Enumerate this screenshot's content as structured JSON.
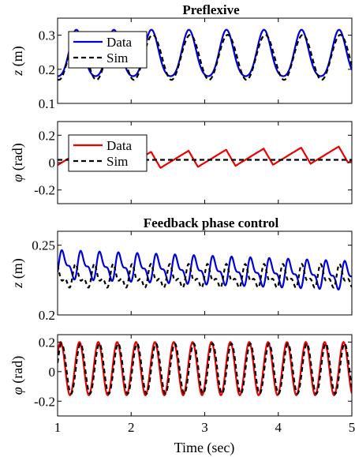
{
  "xlabel": "Time (sec)",
  "chart_data": [
    {
      "type": "line",
      "title": "Preflexive",
      "ylabel_var": "z",
      "ylabel_unit": " (m)",
      "xlim": [
        1,
        5
      ],
      "ylim": [
        0.1,
        0.35
      ],
      "yticks": [
        0.1,
        0.2,
        0.3
      ],
      "ytick_labels": [
        "0.1",
        "0.2",
        "0.3"
      ],
      "xticks": [
        1,
        2,
        3,
        4,
        5
      ],
      "show_xtick_labels": false,
      "legend": {
        "placement": "top-left",
        "entries": [
          "Data",
          "Sim"
        ]
      },
      "series": [
        {
          "name": "Data",
          "color": "#0000dd",
          "dash": "none",
          "model": {
            "offset": 0.238,
            "amp": 0.068,
            "freq": 1.96,
            "phase": 4.95,
            "drift": 0,
            "harm2": 0.01
          }
        },
        {
          "name": "Sim",
          "color": "#000000",
          "dash": "6,4",
          "model": {
            "offset": 0.235,
            "amp": 0.066,
            "freq": 1.96,
            "phase": 4.75,
            "drift": 0,
            "harm2": 0.0
          }
        }
      ]
    },
    {
      "type": "line",
      "title": "",
      "ylabel_var": "φ",
      "ylabel_unit": " (rad)",
      "xlim": [
        1,
        5
      ],
      "ylim": [
        -0.3,
        0.3
      ],
      "yticks": [
        -0.2,
        0,
        0.2
      ],
      "ytick_labels": [
        "-0.2",
        "0",
        "0.2"
      ],
      "xticks": [
        1,
        2,
        3,
        4,
        5
      ],
      "show_xtick_labels": false,
      "legend": {
        "placement": "top-left",
        "entries": [
          "Data",
          "Sim"
        ]
      },
      "series": [
        {
          "name": "Data",
          "color": "#ee0000",
          "dash": "none",
          "model": {
            "kind": "saw",
            "offset": 0.0,
            "amp": 0.06,
            "freq": 1.96,
            "phase": 0.3,
            "drift": 0.015
          }
        },
        {
          "name": "Sim",
          "color": "#000000",
          "dash": "6,4",
          "model": {
            "kind": "flat",
            "offset": 0.02,
            "amp": 0.0,
            "freq": 0,
            "phase": 0,
            "drift": 0
          }
        }
      ]
    },
    {
      "type": "line",
      "title": "Feedback phase control",
      "ylabel_var": "z",
      "ylabel_unit": " (m)",
      "xlim": [
        1,
        5
      ],
      "ylim": [
        0.2,
        0.26
      ],
      "yticks": [
        0.2,
        0.25
      ],
      "ytick_labels": [
        "0.2",
        "0.25"
      ],
      "xticks": [
        1,
        2,
        3,
        4,
        5
      ],
      "show_xtick_labels": false,
      "legend": null,
      "series": [
        {
          "name": "",
          "color": "#0000dd",
          "dash": "none",
          "model": {
            "offset": 0.236,
            "amp": 0.008,
            "freq": 3.9,
            "phase": 0.3,
            "drift": -0.002,
            "harm2": 0.004
          }
        },
        {
          "name": "",
          "color": "#000000",
          "dash": "5,4",
          "model": {
            "offset": 0.227,
            "amp": 0.006,
            "freq": 3.9,
            "phase": 2.2,
            "drift": 0.0,
            "harm2": 0.004
          }
        }
      ]
    },
    {
      "type": "line",
      "title": "",
      "ylabel_var": "φ",
      "ylabel_unit": " (rad)",
      "xlim": [
        1,
        5
      ],
      "ylim": [
        -0.3,
        0.25
      ],
      "yticks": [
        -0.2,
        0,
        0.2
      ],
      "ytick_labels": [
        "-0.2",
        "0",
        "0.2"
      ],
      "xticks": [
        1,
        2,
        3,
        4,
        5
      ],
      "xtick_labels": [
        "1",
        "2",
        "3",
        "4",
        "5"
      ],
      "show_xtick_labels": true,
      "legend": null,
      "series": [
        {
          "name": "",
          "color": "#ee0000",
          "dash": "none",
          "model": {
            "offset": 0.02,
            "amp": 0.18,
            "freq": 3.9,
            "phase": 1.2,
            "drift": 0,
            "harm2": 0.0
          }
        },
        {
          "name": "",
          "color": "#000000",
          "dash": "6,4",
          "model": {
            "offset": 0.02,
            "amp": 0.17,
            "freq": 3.9,
            "phase": 0.85,
            "drift": 0,
            "harm2": 0.0
          }
        }
      ]
    }
  ]
}
